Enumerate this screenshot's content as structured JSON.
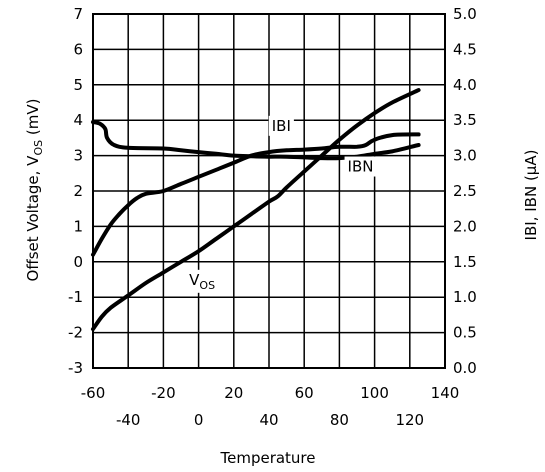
{
  "chart_data": {
    "type": "line",
    "xlabel": "Temperature",
    "ylabel_left": "Offset Voltage, V",
    "ylabel_left_sub": "OS",
    "ylabel_left_unit": " (mV)",
    "ylabel_right": "IBI, IBN (μA)",
    "xlim": [
      -60,
      140
    ],
    "ylim_left": [
      -3,
      7
    ],
    "ylim_right": [
      0.0,
      5.0
    ],
    "grid": true,
    "legend": "none",
    "x_ticks_upper": [
      "-60",
      "-20",
      "20",
      "60",
      "100",
      "140"
    ],
    "x_ticks_upper_values": [
      -60,
      -20,
      20,
      60,
      100,
      140
    ],
    "x_ticks_lower": [
      "-40",
      "0",
      "40",
      "80",
      "120"
    ],
    "x_ticks_lower_values": [
      -40,
      0,
      40,
      80,
      120
    ],
    "y_left_ticks": [
      "-3",
      "-2",
      "-1",
      "0",
      "1",
      "2",
      "3",
      "4",
      "5",
      "6",
      "7"
    ],
    "y_left_tick_values": [
      -3,
      -2,
      -1,
      0,
      1,
      2,
      3,
      4,
      5,
      6,
      7
    ],
    "y_right_ticks": [
      "0.0",
      "0.5",
      "1.0",
      "1.5",
      "2.0",
      "2.5",
      "3.0",
      "3.5",
      "4.0",
      "4.5",
      "5.0"
    ],
    "y_right_tick_values": [
      0.0,
      0.5,
      1.0,
      1.5,
      2.0,
      2.5,
      3.0,
      3.5,
      4.0,
      4.5,
      5.0
    ],
    "annotations": [
      {
        "text": "IBI",
        "x": 47,
        "y_left": 3.7
      },
      {
        "text": "IBN",
        "x": 92,
        "y_left": 2.55
      },
      {
        "text": "V",
        "sub": "OS",
        "x": 2,
        "y_left": -0.65
      }
    ],
    "series": [
      {
        "axis": "left",
        "points": [
          [
            -60,
            -1.9
          ],
          [
            -55,
            -1.55
          ],
          [
            -50,
            -1.3
          ],
          [
            -40,
            -0.95
          ],
          [
            -30,
            -0.6
          ],
          [
            -20,
            -0.3
          ],
          [
            -10,
            0.0
          ],
          [
            0,
            0.3
          ],
          [
            10,
            0.65
          ],
          [
            20,
            1.0
          ],
          [
            30,
            1.35
          ],
          [
            40,
            1.7
          ],
          [
            45,
            1.85
          ],
          [
            50,
            2.1
          ],
          [
            60,
            2.55
          ],
          [
            70,
            3.0
          ],
          [
            80,
            3.45
          ],
          [
            90,
            3.85
          ],
          [
            100,
            4.2
          ],
          [
            110,
            4.5
          ],
          [
            125,
            4.85
          ]
        ]
      },
      {
        "axis": "left",
        "points": [
          [
            -60,
            0.2
          ],
          [
            -55,
            0.65
          ],
          [
            -50,
            1.05
          ],
          [
            -45,
            1.35
          ],
          [
            -40,
            1.6
          ],
          [
            -35,
            1.8
          ],
          [
            -30,
            1.92
          ],
          [
            -20,
            2.0
          ],
          [
            -10,
            2.2
          ],
          [
            0,
            2.4
          ],
          [
            10,
            2.6
          ],
          [
            20,
            2.8
          ],
          [
            30,
            3.0
          ],
          [
            40,
            3.1
          ],
          [
            50,
            3.15
          ],
          [
            60,
            3.17
          ],
          [
            70,
            3.2
          ],
          [
            80,
            3.25
          ],
          [
            90,
            3.25
          ],
          [
            95,
            3.3
          ],
          [
            100,
            3.45
          ],
          [
            110,
            3.58
          ],
          [
            125,
            3.6
          ]
        ]
      },
      {
        "axis": "left",
        "points": [
          [
            -60,
            3.95
          ],
          [
            -56,
            3.9
          ],
          [
            -53,
            3.75
          ],
          [
            -52,
            3.5
          ],
          [
            -48,
            3.3
          ],
          [
            -40,
            3.22
          ],
          [
            -20,
            3.2
          ],
          [
            -10,
            3.15
          ],
          [
            0,
            3.1
          ],
          [
            10,
            3.05
          ],
          [
            20,
            3.0
          ],
          [
            30,
            2.98
          ],
          [
            40,
            2.97
          ],
          [
            50,
            2.97
          ],
          [
            60,
            2.95
          ],
          [
            70,
            2.93
          ],
          [
            80,
            2.93
          ],
          [
            90,
            2.97
          ],
          [
            100,
            3.05
          ],
          [
            110,
            3.12
          ],
          [
            125,
            3.3
          ]
        ]
      }
    ]
  }
}
